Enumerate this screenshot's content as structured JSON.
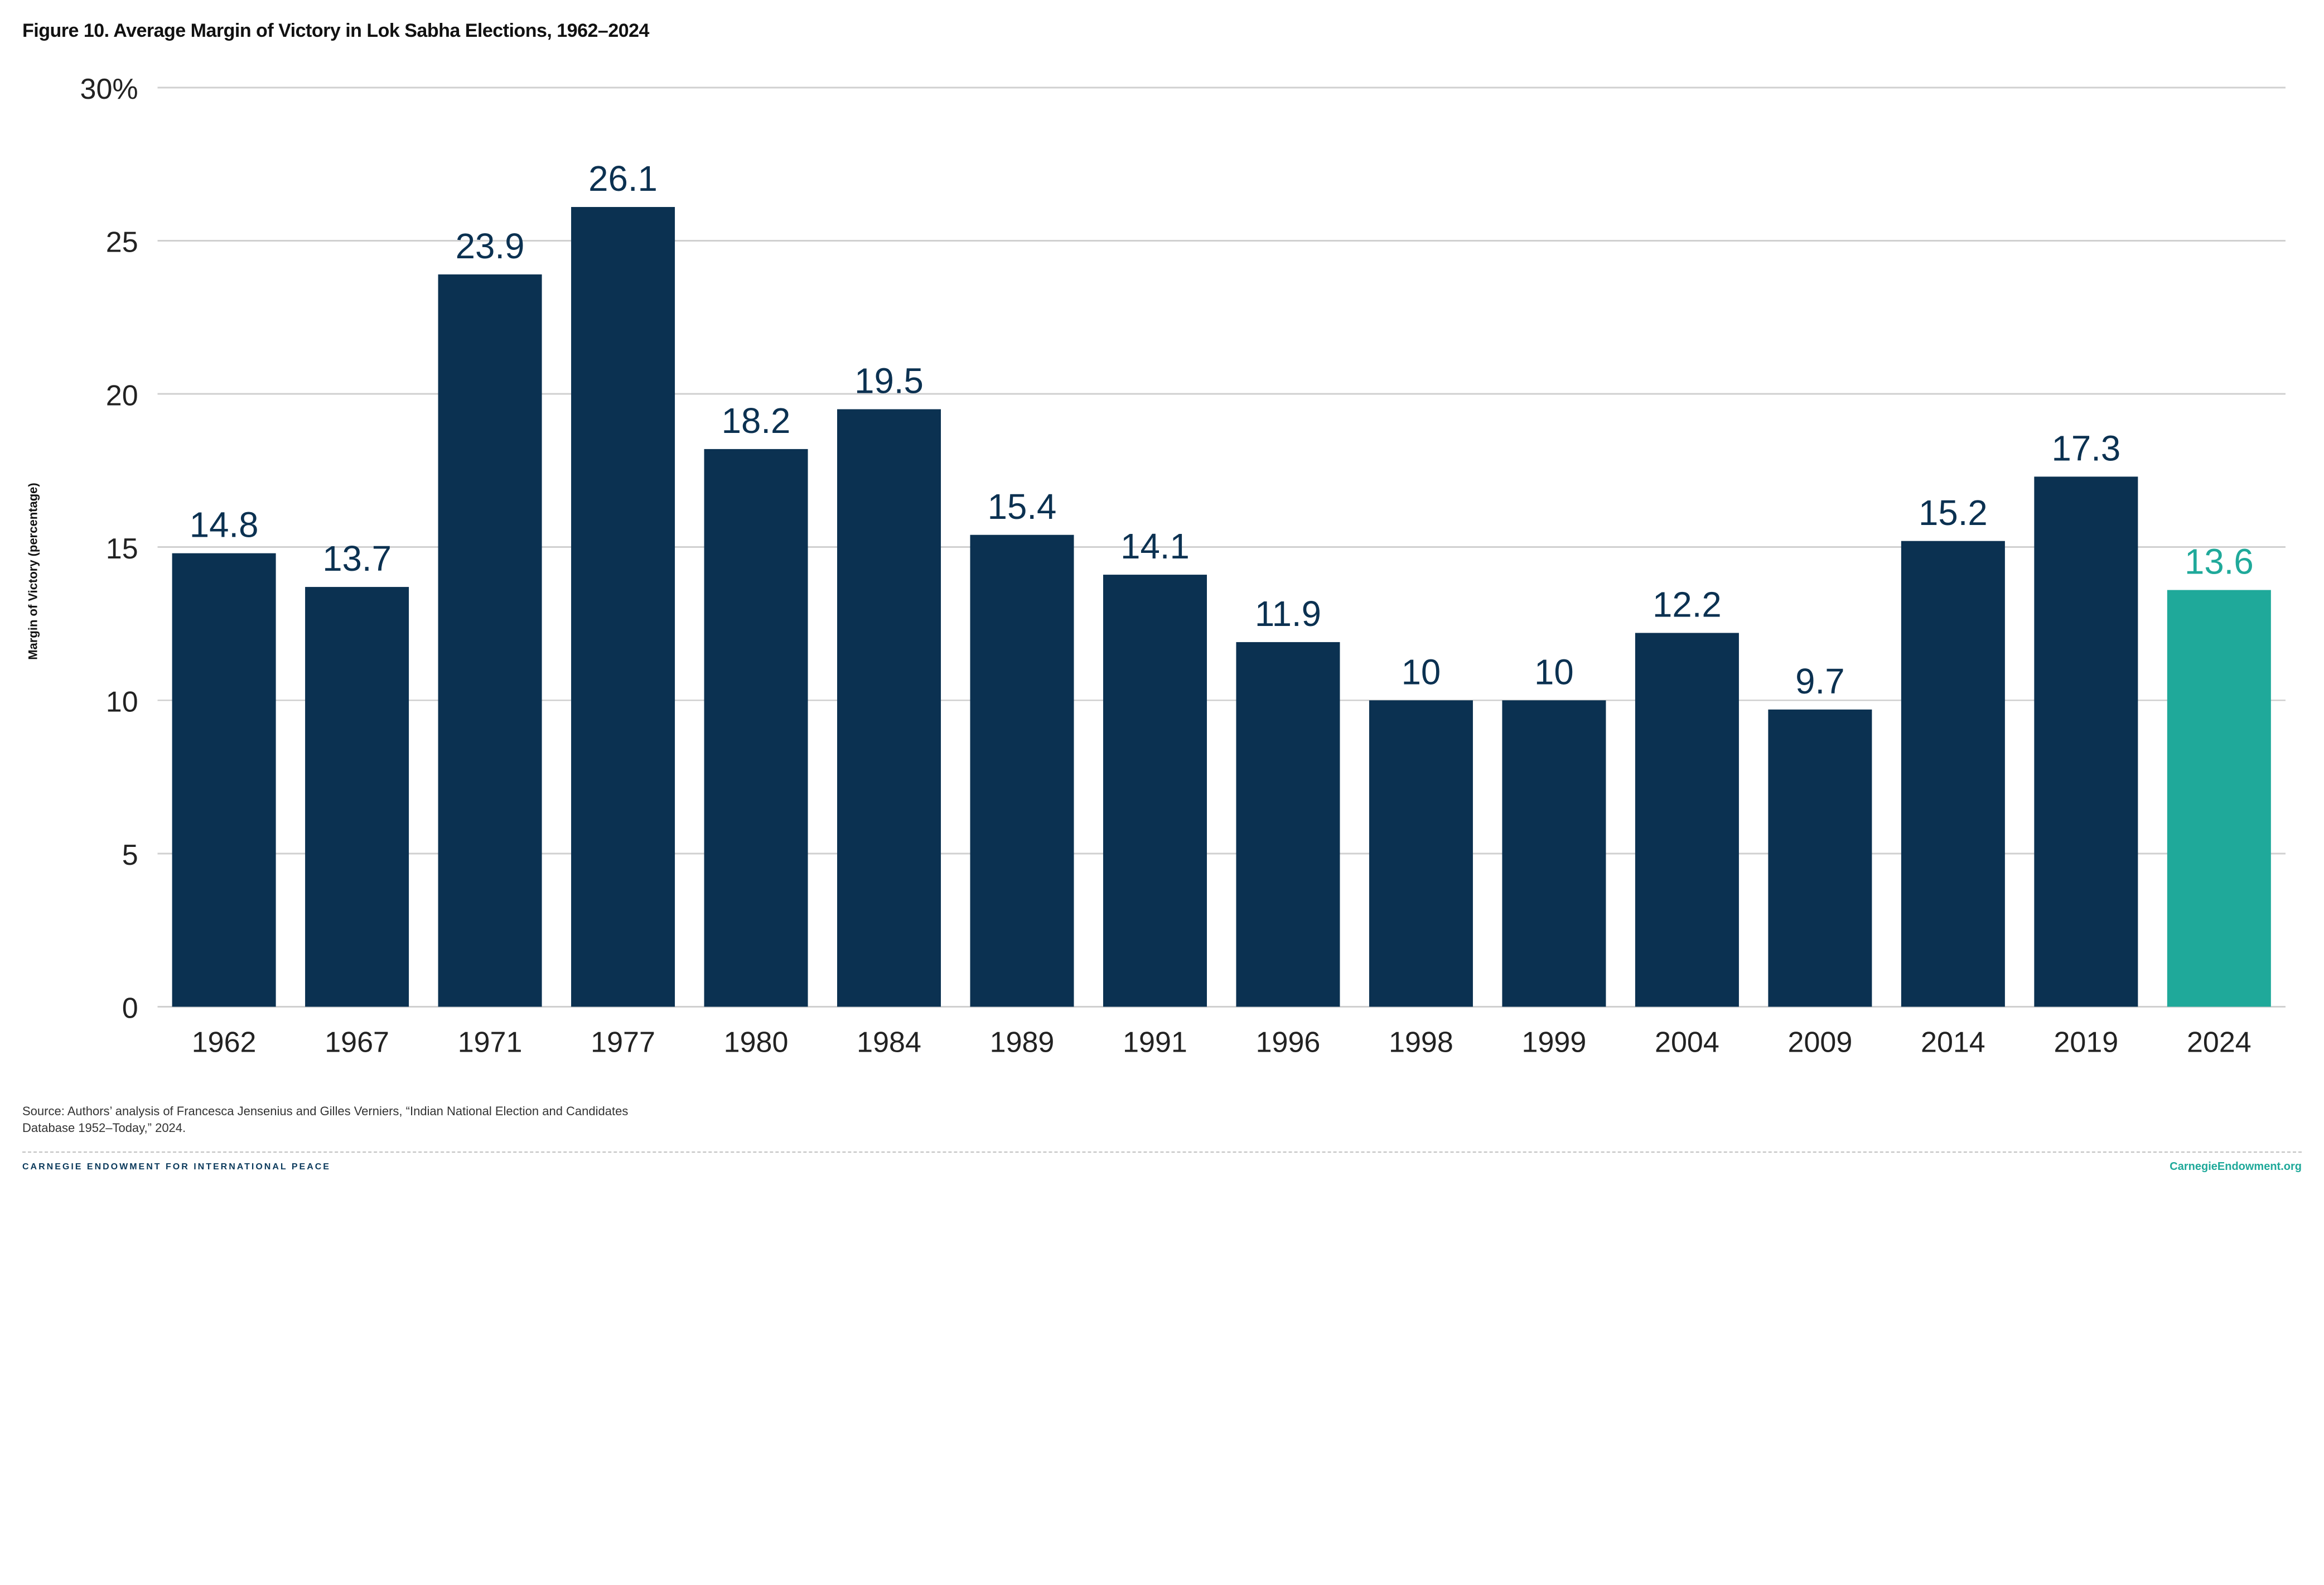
{
  "title": "Figure 10. Average Margin of Victory in Lok Sabha Elections, 1962–2024",
  "chart": {
    "type": "bar",
    "ylabel": "Margin of Victory (percentage)",
    "ylim": [
      0,
      30
    ],
    "ytick_step": 5,
    "y_unit_suffix_on_max": "%",
    "categories": [
      "1962",
      "1967",
      "1971",
      "1977",
      "1980",
      "1984",
      "1989",
      "1991",
      "1996",
      "1998",
      "1999",
      "2004",
      "2009",
      "2014",
      "2019",
      "2024"
    ],
    "values": [
      14.8,
      13.7,
      23.9,
      26.1,
      18.2,
      19.5,
      15.4,
      14.1,
      11.9,
      10,
      10,
      12.2,
      9.7,
      15.2,
      17.3,
      13.6
    ],
    "highlight_index": 15,
    "bar_color": "#0b3151",
    "highlight_color": "#1fa99a",
    "grid_color": "#d0d0d0",
    "background_color": "#ffffff",
    "data_label_fontsize": 22,
    "axis_fontsize": 18,
    "bar_width_ratio": 0.78
  },
  "source": "Source: Authors’ analysis of Francesca Jensenius and Gilles Verniers, “Indian National Election and Candidates Database 1952–Today,” 2024.",
  "footer": {
    "org": "CARNEGIE ENDOWMENT FOR INTERNATIONAL PEACE",
    "url": "CarnegieEndowment.org"
  }
}
